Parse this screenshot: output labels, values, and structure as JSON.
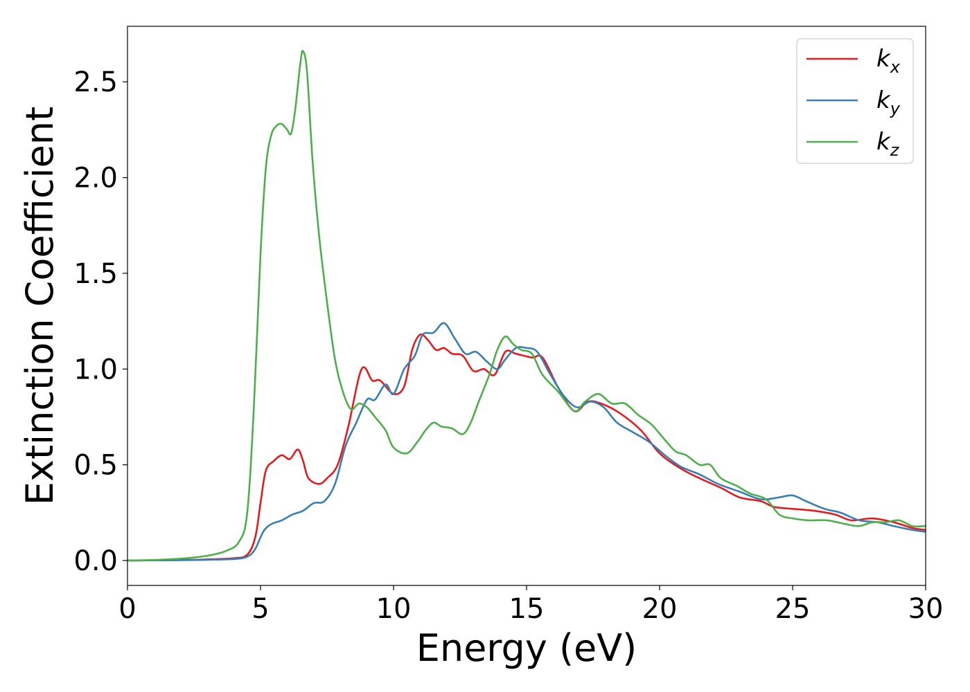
{
  "chart_data": {
    "type": "line",
    "title": "",
    "xlabel": "Energy (eV)",
    "ylabel": "Extinction Coefficient",
    "xlim": [
      0,
      30
    ],
    "ylim": [
      -0.13,
      2.79
    ],
    "xticks": [
      0,
      5,
      10,
      15,
      20,
      25,
      30
    ],
    "xtick_labels": [
      "0",
      "5",
      "10",
      "15",
      "20",
      "25",
      "30"
    ],
    "yticks": [
      0.0,
      0.5,
      1.0,
      1.5,
      2.0,
      2.5
    ],
    "ytick_labels": [
      "0.0",
      "0.5",
      "1.0",
      "1.5",
      "2.0",
      "2.5"
    ],
    "grid": false,
    "legend_position": "top-right",
    "series": [
      {
        "name": "k",
        "subscript": "x",
        "color": "#e41a1c",
        "points": [
          [
            0,
            0.0
          ],
          [
            2,
            0.003
          ],
          [
            3,
            0.006
          ],
          [
            4,
            0.012
          ],
          [
            4.5,
            0.03
          ],
          [
            4.8,
            0.12
          ],
          [
            5.0,
            0.3
          ],
          [
            5.2,
            0.47
          ],
          [
            5.5,
            0.52
          ],
          [
            5.8,
            0.55
          ],
          [
            6.1,
            0.53
          ],
          [
            6.4,
            0.58
          ],
          [
            6.6,
            0.52
          ],
          [
            6.8,
            0.43
          ],
          [
            7.2,
            0.4
          ],
          [
            7.5,
            0.43
          ],
          [
            7.9,
            0.5
          ],
          [
            8.3,
            0.7
          ],
          [
            8.8,
            1.0
          ],
          [
            9.2,
            0.94
          ],
          [
            9.5,
            0.94
          ],
          [
            10.0,
            0.87
          ],
          [
            10.4,
            0.91
          ],
          [
            10.7,
            1.1
          ],
          [
            11.0,
            1.18
          ],
          [
            11.3,
            1.15
          ],
          [
            11.6,
            1.1
          ],
          [
            11.9,
            1.11
          ],
          [
            12.2,
            1.08
          ],
          [
            12.6,
            1.07
          ],
          [
            13.0,
            0.99
          ],
          [
            13.4,
            1.0
          ],
          [
            13.8,
            0.97
          ],
          [
            14.2,
            1.09
          ],
          [
            14.6,
            1.08
          ],
          [
            15.2,
            1.06
          ],
          [
            15.6,
            1.06
          ],
          [
            16.2,
            0.9
          ],
          [
            16.8,
            0.78
          ],
          [
            17.3,
            0.83
          ],
          [
            17.8,
            0.82
          ],
          [
            18.5,
            0.77
          ],
          [
            19.3,
            0.68
          ],
          [
            20.0,
            0.56
          ],
          [
            20.8,
            0.48
          ],
          [
            21.5,
            0.43
          ],
          [
            22.3,
            0.38
          ],
          [
            23.0,
            0.33
          ],
          [
            23.8,
            0.31
          ],
          [
            24.3,
            0.28
          ],
          [
            25.0,
            0.27
          ],
          [
            25.8,
            0.26
          ],
          [
            26.6,
            0.24
          ],
          [
            27.2,
            0.21
          ],
          [
            28.0,
            0.22
          ],
          [
            28.8,
            0.2
          ],
          [
            29.5,
            0.17
          ],
          [
            30.0,
            0.16
          ]
        ]
      },
      {
        "name": "k",
        "subscript": "y",
        "color": "#377eb8",
        "points": [
          [
            0,
            0.0
          ],
          [
            2,
            0.002
          ],
          [
            3,
            0.004
          ],
          [
            4,
            0.008
          ],
          [
            4.5,
            0.02
          ],
          [
            4.8,
            0.06
          ],
          [
            5.1,
            0.15
          ],
          [
            5.4,
            0.19
          ],
          [
            5.8,
            0.21
          ],
          [
            6.2,
            0.24
          ],
          [
            6.6,
            0.26
          ],
          [
            7.0,
            0.3
          ],
          [
            7.4,
            0.31
          ],
          [
            7.8,
            0.4
          ],
          [
            8.2,
            0.6
          ],
          [
            8.6,
            0.72
          ],
          [
            9.0,
            0.84
          ],
          [
            9.3,
            0.84
          ],
          [
            9.7,
            0.92
          ],
          [
            10.0,
            0.87
          ],
          [
            10.4,
            1.0
          ],
          [
            10.8,
            1.07
          ],
          [
            11.1,
            1.18
          ],
          [
            11.5,
            1.19
          ],
          [
            11.9,
            1.24
          ],
          [
            12.3,
            1.16
          ],
          [
            12.7,
            1.08
          ],
          [
            13.1,
            1.09
          ],
          [
            13.5,
            1.04
          ],
          [
            13.9,
            1.0
          ],
          [
            14.2,
            1.05
          ],
          [
            14.6,
            1.11
          ],
          [
            15.0,
            1.11
          ],
          [
            15.4,
            1.09
          ],
          [
            15.9,
            0.97
          ],
          [
            16.4,
            0.86
          ],
          [
            16.9,
            0.8
          ],
          [
            17.4,
            0.83
          ],
          [
            17.9,
            0.8
          ],
          [
            18.4,
            0.72
          ],
          [
            19.0,
            0.67
          ],
          [
            19.6,
            0.62
          ],
          [
            20.2,
            0.55
          ],
          [
            20.8,
            0.49
          ],
          [
            21.5,
            0.45
          ],
          [
            22.2,
            0.4
          ],
          [
            23.0,
            0.36
          ],
          [
            23.8,
            0.32
          ],
          [
            24.5,
            0.33
          ],
          [
            25.0,
            0.34
          ],
          [
            25.5,
            0.31
          ],
          [
            26.2,
            0.27
          ],
          [
            26.8,
            0.25
          ],
          [
            27.5,
            0.21
          ],
          [
            28.2,
            0.2
          ],
          [
            28.8,
            0.18
          ],
          [
            29.5,
            0.16
          ],
          [
            30.0,
            0.15
          ]
        ]
      },
      {
        "name": "k",
        "subscript": "z",
        "color": "#4daf4a",
        "points": [
          [
            0,
            0.0
          ],
          [
            1,
            0.003
          ],
          [
            2,
            0.01
          ],
          [
            3,
            0.025
          ],
          [
            3.7,
            0.05
          ],
          [
            4.2,
            0.1
          ],
          [
            4.5,
            0.25
          ],
          [
            4.75,
            0.8
          ],
          [
            5.0,
            1.6
          ],
          [
            5.2,
            2.05
          ],
          [
            5.4,
            2.22
          ],
          [
            5.6,
            2.27
          ],
          [
            5.8,
            2.28
          ],
          [
            6.0,
            2.25
          ],
          [
            6.15,
            2.23
          ],
          [
            6.3,
            2.35
          ],
          [
            6.5,
            2.6
          ],
          [
            6.6,
            2.66
          ],
          [
            6.75,
            2.55
          ],
          [
            6.95,
            2.1
          ],
          [
            7.2,
            1.7
          ],
          [
            7.5,
            1.35
          ],
          [
            7.8,
            1.05
          ],
          [
            8.1,
            0.88
          ],
          [
            8.4,
            0.79
          ],
          [
            8.7,
            0.82
          ],
          [
            9.0,
            0.8
          ],
          [
            9.3,
            0.75
          ],
          [
            9.7,
            0.68
          ],
          [
            10.0,
            0.59
          ],
          [
            10.5,
            0.56
          ],
          [
            10.9,
            0.62
          ],
          [
            11.2,
            0.68
          ],
          [
            11.5,
            0.72
          ],
          [
            11.8,
            0.7
          ],
          [
            12.2,
            0.69
          ],
          [
            12.6,
            0.66
          ],
          [
            12.9,
            0.72
          ],
          [
            13.2,
            0.83
          ],
          [
            13.6,
            0.97
          ],
          [
            13.9,
            1.1
          ],
          [
            14.2,
            1.17
          ],
          [
            14.5,
            1.13
          ],
          [
            14.8,
            1.1
          ],
          [
            15.2,
            1.08
          ],
          [
            15.6,
            0.97
          ],
          [
            16.2,
            0.88
          ],
          [
            16.8,
            0.78
          ],
          [
            17.2,
            0.83
          ],
          [
            17.7,
            0.87
          ],
          [
            18.2,
            0.82
          ],
          [
            18.7,
            0.82
          ],
          [
            19.2,
            0.76
          ],
          [
            19.7,
            0.71
          ],
          [
            20.2,
            0.63
          ],
          [
            20.6,
            0.57
          ],
          [
            21.0,
            0.55
          ],
          [
            21.5,
            0.5
          ],
          [
            21.9,
            0.5
          ],
          [
            22.3,
            0.43
          ],
          [
            22.9,
            0.39
          ],
          [
            23.4,
            0.35
          ],
          [
            24.0,
            0.32
          ],
          [
            24.5,
            0.24
          ],
          [
            25.0,
            0.22
          ],
          [
            25.6,
            0.21
          ],
          [
            26.3,
            0.21
          ],
          [
            27.0,
            0.19
          ],
          [
            27.5,
            0.18
          ],
          [
            28.0,
            0.2
          ],
          [
            28.5,
            0.2
          ],
          [
            29.0,
            0.21
          ],
          [
            29.5,
            0.18
          ],
          [
            30.0,
            0.18
          ]
        ]
      }
    ]
  }
}
